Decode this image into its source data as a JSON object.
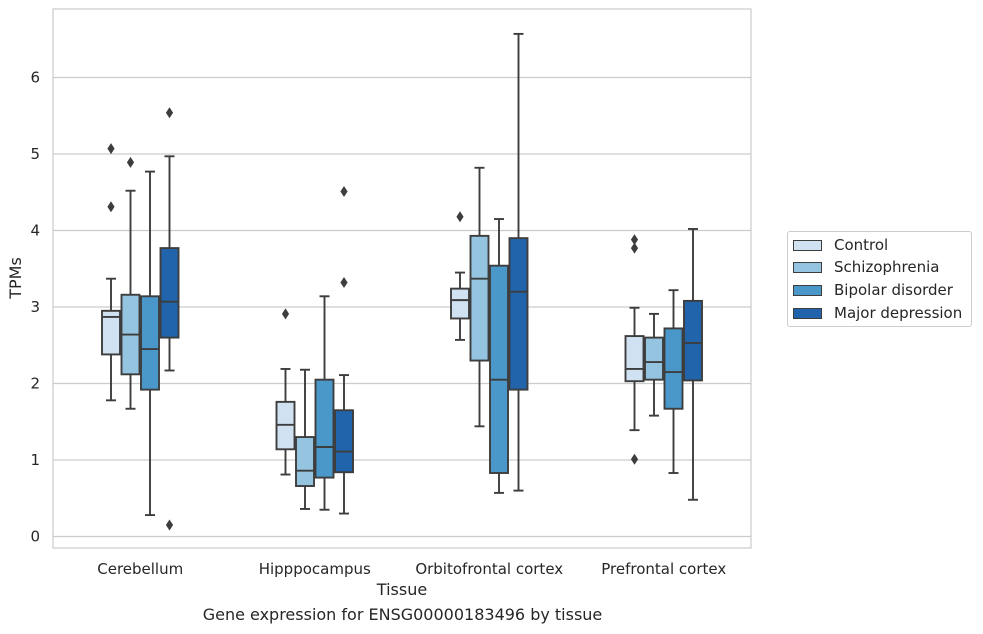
{
  "chart_data": {
    "type": "box",
    "title": "",
    "caption": "Gene expression for ENSG00000183496 by tissue",
    "xlabel": "Tissue",
    "ylabel": "TPMs",
    "ylim": [
      -0.15,
      6.9
    ],
    "yticks": [
      0,
      1,
      2,
      3,
      4,
      5,
      6
    ],
    "grid": true,
    "legend_position": "right",
    "categories": [
      "Cerebellum",
      "Hipppocampus",
      "Orbitofrontal cortex",
      "Prefrontal cortex"
    ],
    "series": [
      {
        "name": "Control",
        "color": "#d0e1f2",
        "boxes": [
          {
            "whisker_low": 1.78,
            "q1": 2.38,
            "median": 2.87,
            "q3": 2.95,
            "whisker_high": 3.37,
            "outliers": [
              4.31,
              5.07
            ]
          },
          {
            "whisker_low": 0.81,
            "q1": 1.14,
            "median": 1.46,
            "q3": 1.76,
            "whisker_high": 2.19,
            "outliers": [
              2.91
            ]
          },
          {
            "whisker_low": 2.57,
            "q1": 2.85,
            "median": 3.09,
            "q3": 3.24,
            "whisker_high": 3.45,
            "outliers": [
              4.18
            ]
          },
          {
            "whisker_low": 1.39,
            "q1": 2.03,
            "median": 2.19,
            "q3": 2.62,
            "whisker_high": 2.99,
            "outliers": [
              1.01,
              3.77,
              3.88
            ]
          }
        ]
      },
      {
        "name": "Schizophrenia",
        "color": "#94c4df",
        "boxes": [
          {
            "whisker_low": 1.67,
            "q1": 2.12,
            "median": 2.64,
            "q3": 3.16,
            "whisker_high": 4.52,
            "outliers": [
              4.89
            ]
          },
          {
            "whisker_low": 0.36,
            "q1": 0.66,
            "median": 0.86,
            "q3": 1.3,
            "whisker_high": 2.18,
            "outliers": []
          },
          {
            "whisker_low": 1.44,
            "q1": 2.3,
            "median": 3.37,
            "q3": 3.93,
            "whisker_high": 4.82,
            "outliers": []
          },
          {
            "whisker_low": 1.58,
            "q1": 2.05,
            "median": 2.28,
            "q3": 2.6,
            "whisker_high": 2.91,
            "outliers": []
          }
        ]
      },
      {
        "name": "Bipolar disorder",
        "color": "#4a98c9",
        "boxes": [
          {
            "whisker_low": 0.28,
            "q1": 1.92,
            "median": 2.45,
            "q3": 3.14,
            "whisker_high": 4.77,
            "outliers": []
          },
          {
            "whisker_low": 0.35,
            "q1": 0.77,
            "median": 1.17,
            "q3": 2.05,
            "whisker_high": 3.14,
            "outliers": []
          },
          {
            "whisker_low": 0.57,
            "q1": 0.83,
            "median": 2.05,
            "q3": 3.54,
            "whisker_high": 4.15,
            "outliers": []
          },
          {
            "whisker_low": 0.83,
            "q1": 1.67,
            "median": 2.15,
            "q3": 2.72,
            "whisker_high": 3.22,
            "outliers": []
          }
        ]
      },
      {
        "name": "Major depression",
        "color": "#2164ab",
        "boxes": [
          {
            "whisker_low": 2.17,
            "q1": 2.6,
            "median": 3.07,
            "q3": 3.77,
            "whisker_high": 4.97,
            "outliers": [
              0.15,
              5.54
            ]
          },
          {
            "whisker_low": 0.3,
            "q1": 0.84,
            "median": 1.11,
            "q3": 1.65,
            "whisker_high": 2.11,
            "outliers": [
              3.32,
              4.51
            ]
          },
          {
            "whisker_low": 0.6,
            "q1": 1.92,
            "median": 3.2,
            "q3": 3.9,
            "whisker_high": 6.57,
            "outliers": []
          },
          {
            "whisker_low": 0.48,
            "q1": 2.04,
            "median": 2.53,
            "q3": 3.08,
            "whisker_high": 4.02,
            "outliers": []
          }
        ]
      }
    ]
  }
}
